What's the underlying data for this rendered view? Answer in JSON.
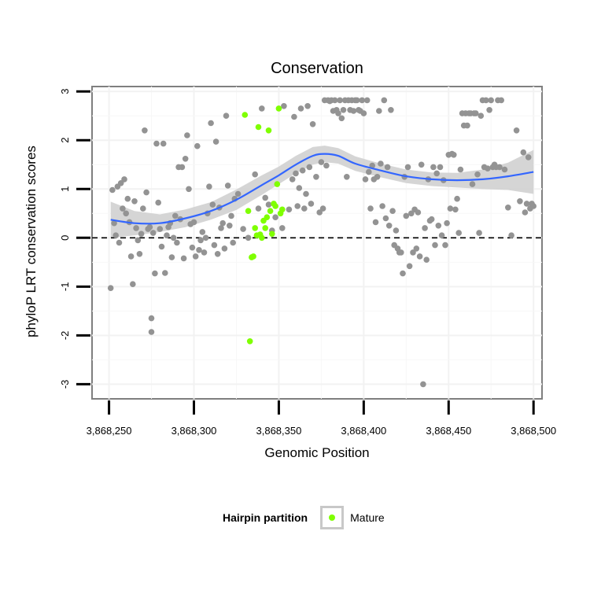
{
  "chart_data": {
    "type": "scatter",
    "title": "Conservation",
    "xlabel": "Genomic Position",
    "ylabel": "phyloP LRT conservation scores",
    "xlim": [
      3868240,
      3868505
    ],
    "ylim": [
      -3.3,
      3.1
    ],
    "x_ticks": [
      3868250,
      3868300,
      3868350,
      3868400,
      3868450,
      3868500
    ],
    "x_tick_labels": [
      "3,868,250",
      "3,868,300",
      "3,868,350",
      "3,868,400",
      "3,868,450",
      "3,868,500"
    ],
    "y_ticks": [
      -3,
      -2,
      -1,
      0,
      1,
      2,
      3
    ],
    "y_tick_labels": [
      "-3",
      "-2",
      "-1",
      "0",
      "1",
      "2",
      "3"
    ],
    "grid": true,
    "reference_line": {
      "y": 0,
      "style": "dashed"
    },
    "legend": {
      "title": "Hairpin partition",
      "position": "bottom",
      "entries": [
        "Mature"
      ]
    },
    "colors": {
      "other": "#939393",
      "mature": "#7fff00",
      "smooth": "#3366ff",
      "band": "#d0d0d0"
    },
    "series": [
      {
        "group": "other",
        "points": [
          [
            3868251,
            -1.03
          ],
          [
            3868252,
            0.98
          ],
          [
            3868253,
            0.3
          ],
          [
            3868254,
            0.05
          ],
          [
            3868255,
            1.05
          ],
          [
            3868256,
            -0.1
          ],
          [
            3868257,
            1.12
          ],
          [
            3868258,
            0.6
          ],
          [
            3868259,
            1.2
          ],
          [
            3868260,
            0.5
          ],
          [
            3868261,
            0.8
          ],
          [
            3868262,
            0.32
          ],
          [
            3868263,
            -0.38
          ],
          [
            3868264,
            -0.95
          ],
          [
            3868265,
            0.75
          ],
          [
            3868266,
            0.2
          ],
          [
            3868267,
            -0.05
          ],
          [
            3868268,
            -0.33
          ],
          [
            3868269,
            0.08
          ],
          [
            3868270,
            0.6
          ],
          [
            3868271,
            2.2
          ],
          [
            3868272,
            0.93
          ],
          [
            3868273,
            0.18
          ],
          [
            3868274,
            0.22
          ],
          [
            3868275,
            -1.65
          ],
          [
            3868275,
            -1.93
          ],
          [
            3868276,
            0.1
          ],
          [
            3868277,
            -0.73
          ],
          [
            3868278,
            1.93
          ],
          [
            3868279,
            0.72
          ],
          [
            3868280,
            0.18
          ],
          [
            3868281,
            -0.18
          ],
          [
            3868282,
            1.93
          ],
          [
            3868283,
            -0.72
          ],
          [
            3868284,
            0.05
          ],
          [
            3868285,
            0.22
          ],
          [
            3868286,
            0.3
          ],
          [
            3868287,
            -0.4
          ],
          [
            3868288,
            0.0
          ],
          [
            3868289,
            0.45
          ],
          [
            3868290,
            -0.1
          ],
          [
            3868291,
            1.45
          ],
          [
            3868292,
            0.38
          ],
          [
            3868293,
            1.45
          ],
          [
            3868294,
            -0.42
          ],
          [
            3868295,
            1.62
          ],
          [
            3868296,
            2.1
          ],
          [
            3868297,
            1.0
          ],
          [
            3868298,
            0.28
          ],
          [
            3868299,
            -0.2
          ],
          [
            3868300,
            0.32
          ],
          [
            3868301,
            -0.38
          ],
          [
            3868302,
            1.88
          ],
          [
            3868303,
            -0.25
          ],
          [
            3868304,
            -0.05
          ],
          [
            3868305,
            0.12
          ],
          [
            3868306,
            -0.3
          ],
          [
            3868307,
            0.0
          ],
          [
            3868308,
            0.5
          ],
          [
            3868309,
            1.05
          ],
          [
            3868310,
            2.35
          ],
          [
            3868311,
            0.68
          ],
          [
            3868312,
            -0.15
          ],
          [
            3868313,
            1.97
          ],
          [
            3868314,
            -0.33
          ],
          [
            3868315,
            0.62
          ],
          [
            3868316,
            0.2
          ],
          [
            3868317,
            0.3
          ],
          [
            3868318,
            -0.22
          ],
          [
            3868319,
            2.5
          ],
          [
            3868320,
            1.07
          ],
          [
            3868321,
            0.25
          ],
          [
            3868322,
            0.45
          ],
          [
            3868323,
            -0.1
          ],
          [
            3868324,
            0.8
          ],
          [
            3868326,
            0.9
          ],
          [
            3868329,
            0.18
          ],
          [
            3868332,
            0.0
          ],
          [
            3868336,
            1.3
          ],
          [
            3868338,
            0.6
          ],
          [
            3868340,
            2.65
          ],
          [
            3868342,
            0.82
          ],
          [
            3868344,
            0.68
          ],
          [
            3868346,
            0.15
          ],
          [
            3868348,
            0.42
          ],
          [
            3868352,
            0.2
          ],
          [
            3868353,
            2.7
          ],
          [
            3868356,
            0.58
          ],
          [
            3868358,
            1.2
          ],
          [
            3868359,
            2.48
          ],
          [
            3868360,
            1.32
          ],
          [
            3868361,
            0.65
          ],
          [
            3868362,
            1.02
          ],
          [
            3868363,
            2.65
          ],
          [
            3868364,
            1.38
          ],
          [
            3868365,
            0.6
          ],
          [
            3868366,
            0.9
          ],
          [
            3868367,
            2.7
          ],
          [
            3868368,
            1.45
          ],
          [
            3868369,
            0.7
          ],
          [
            3868370,
            2.33
          ],
          [
            3868372,
            1.25
          ],
          [
            3868374,
            0.52
          ],
          [
            3868375,
            1.55
          ],
          [
            3868376,
            0.6
          ],
          [
            3868377,
            2.82
          ],
          [
            3868378,
            1.48
          ],
          [
            3868379,
            2.82
          ],
          [
            3868380,
            2.8
          ],
          [
            3868381,
            2.82
          ],
          [
            3868382,
            2.6
          ],
          [
            3868383,
            2.82
          ],
          [
            3868384,
            2.62
          ],
          [
            3868385,
            2.55
          ],
          [
            3868386,
            2.82
          ],
          [
            3868387,
            2.45
          ],
          [
            3868388,
            2.62
          ],
          [
            3868389,
            2.82
          ],
          [
            3868390,
            1.25
          ],
          [
            3868391,
            2.82
          ],
          [
            3868392,
            2.62
          ],
          [
            3868393,
            2.82
          ],
          [
            3868394,
            2.6
          ],
          [
            3868395,
            2.82
          ],
          [
            3868396,
            2.82
          ],
          [
            3868397,
            2.62
          ],
          [
            3868398,
            2.6
          ],
          [
            3868399,
            2.82
          ],
          [
            3868400,
            2.55
          ],
          [
            3868401,
            1.2
          ],
          [
            3868402,
            2.82
          ],
          [
            3868403,
            1.35
          ],
          [
            3868404,
            0.6
          ],
          [
            3868405,
            1.48
          ],
          [
            3868406,
            1.2
          ],
          [
            3868407,
            0.32
          ],
          [
            3868408,
            1.25
          ],
          [
            3868409,
            2.6
          ],
          [
            3868410,
            1.52
          ],
          [
            3868411,
            0.65
          ],
          [
            3868412,
            2.82
          ],
          [
            3868413,
            0.4
          ],
          [
            3868414,
            1.45
          ],
          [
            3868415,
            0.25
          ],
          [
            3868416,
            2.62
          ],
          [
            3868417,
            0.55
          ],
          [
            3868418,
            -0.15
          ],
          [
            3868419,
            0.15
          ],
          [
            3868420,
            -0.22
          ],
          [
            3868421,
            -0.3
          ],
          [
            3868422,
            -0.3
          ],
          [
            3868423,
            -0.73
          ],
          [
            3868424,
            1.25
          ],
          [
            3868425,
            0.45
          ],
          [
            3868426,
            1.45
          ],
          [
            3868427,
            -0.58
          ],
          [
            3868428,
            0.5
          ],
          [
            3868429,
            -0.3
          ],
          [
            3868430,
            0.58
          ],
          [
            3868431,
            -0.22
          ],
          [
            3868432,
            0.52
          ],
          [
            3868433,
            -0.38
          ],
          [
            3868434,
            1.5
          ],
          [
            3868435,
            -3.0
          ],
          [
            3868436,
            0.2
          ],
          [
            3868437,
            -0.45
          ],
          [
            3868438,
            1.2
          ],
          [
            3868439,
            0.35
          ],
          [
            3868440,
            0.38
          ],
          [
            3868441,
            1.45
          ],
          [
            3868442,
            -0.15
          ],
          [
            3868443,
            1.32
          ],
          [
            3868444,
            0.25
          ],
          [
            3868445,
            1.45
          ],
          [
            3868446,
            0.05
          ],
          [
            3868447,
            1.18
          ],
          [
            3868448,
            -0.15
          ],
          [
            3868449,
            0.3
          ],
          [
            3868450,
            1.7
          ],
          [
            3868451,
            0.6
          ],
          [
            3868452,
            1.72
          ],
          [
            3868453,
            1.7
          ],
          [
            3868454,
            0.58
          ],
          [
            3868455,
            0.8
          ],
          [
            3868456,
            0.1
          ],
          [
            3868457,
            1.4
          ],
          [
            3868458,
            2.55
          ],
          [
            3868459,
            2.3
          ],
          [
            3868460,
            2.55
          ],
          [
            3868461,
            2.3
          ],
          [
            3868462,
            2.55
          ],
          [
            3868463,
            2.55
          ],
          [
            3868464,
            1.1
          ],
          [
            3868465,
            2.55
          ],
          [
            3868466,
            2.55
          ],
          [
            3868467,
            1.3
          ],
          [
            3868468,
            0.1
          ],
          [
            3868469,
            2.5
          ],
          [
            3868470,
            2.82
          ],
          [
            3868471,
            1.45
          ],
          [
            3868472,
            2.82
          ],
          [
            3868473,
            1.42
          ],
          [
            3868474,
            2.62
          ],
          [
            3868475,
            2.82
          ],
          [
            3868476,
            1.45
          ],
          [
            3868477,
            1.5
          ],
          [
            3868478,
            1.45
          ],
          [
            3868479,
            2.82
          ],
          [
            3868480,
            1.45
          ],
          [
            3868481,
            2.82
          ],
          [
            3868483,
            1.4
          ],
          [
            3868485,
            0.62
          ],
          [
            3868487,
            0.05
          ],
          [
            3868490,
            2.2
          ],
          [
            3868492,
            0.75
          ],
          [
            3868494,
            1.75
          ],
          [
            3868495,
            0.52
          ],
          [
            3868496,
            0.7
          ],
          [
            3868497,
            1.65
          ],
          [
            3868498,
            0.6
          ],
          [
            3868499,
            0.7
          ],
          [
            3868500,
            0.65
          ]
        ]
      },
      {
        "name": "Mature",
        "group": "mature",
        "points": [
          [
            3868330,
            2.52
          ],
          [
            3868332,
            0.55
          ],
          [
            3868333,
            -2.12
          ],
          [
            3868334,
            -0.4
          ],
          [
            3868335,
            -0.38
          ],
          [
            3868336,
            0.2
          ],
          [
            3868337,
            0.05
          ],
          [
            3868338,
            2.27
          ],
          [
            3868339,
            0.07
          ],
          [
            3868340,
            0.0
          ],
          [
            3868341,
            0.35
          ],
          [
            3868342,
            0.2
          ],
          [
            3868343,
            0.42
          ],
          [
            3868344,
            2.2
          ],
          [
            3868345,
            0.55
          ],
          [
            3868346,
            0.08
          ],
          [
            3868347,
            0.7
          ],
          [
            3868348,
            0.65
          ],
          [
            3868349,
            1.1
          ],
          [
            3868350,
            2.65
          ],
          [
            3868351,
            0.5
          ],
          [
            3868352,
            0.58
          ]
        ]
      }
    ],
    "smooth_fit": {
      "x": [
        3868251,
        3868265,
        3868280,
        3868295,
        3868310,
        3868325,
        3868340,
        3868350,
        3868360,
        3868370,
        3868377,
        3868385,
        3868395,
        3868410,
        3868425,
        3868440,
        3868455,
        3868470,
        3868485,
        3868500
      ],
      "y": [
        0.37,
        0.3,
        0.3,
        0.4,
        0.55,
        0.78,
        1.08,
        1.28,
        1.5,
        1.68,
        1.72,
        1.68,
        1.52,
        1.38,
        1.26,
        1.2,
        1.18,
        1.2,
        1.26,
        1.35
      ],
      "band_lower": [
        0.0,
        0.05,
        0.12,
        0.22,
        0.37,
        0.57,
        0.88,
        1.1,
        1.32,
        1.5,
        1.55,
        1.52,
        1.37,
        1.24,
        1.12,
        1.06,
        1.03,
        1.0,
        0.98,
        0.9
      ],
      "band_upper": [
        0.74,
        0.55,
        0.48,
        0.58,
        0.73,
        0.99,
        1.28,
        1.46,
        1.68,
        1.86,
        1.89,
        1.84,
        1.67,
        1.52,
        1.4,
        1.34,
        1.33,
        1.4,
        1.54,
        1.8
      ]
    }
  }
}
